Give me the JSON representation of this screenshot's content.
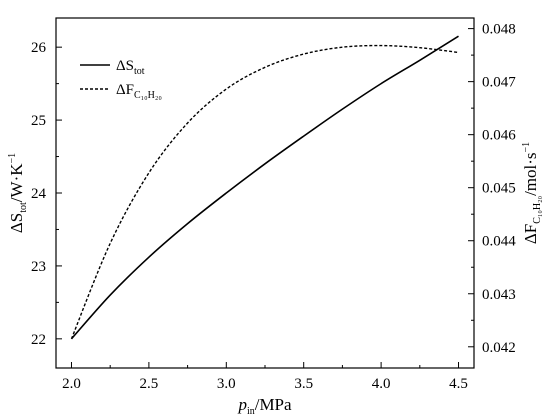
{
  "chart_data": {
    "type": "line",
    "x_axis": {
      "label_main": "p",
      "label_sub": "in",
      "label_unit": "/MPa",
      "range": [
        1.9,
        4.6
      ],
      "ticks": [
        2.0,
        2.5,
        3.0,
        3.5,
        4.0,
        4.5
      ],
      "tick_labels": [
        "2.0",
        "2.5",
        "3.0",
        "3.5",
        "4.0",
        "4.5"
      ]
    },
    "y_left": {
      "label_prefix": "ΔS",
      "label_sub": "tot",
      "label_unit": "/W·K",
      "label_sup": "−1",
      "range": [
        21.6,
        26.4
      ],
      "ticks": [
        22,
        23,
        24,
        25,
        26
      ],
      "tick_labels": [
        "22",
        "23",
        "24",
        "25",
        "26"
      ]
    },
    "y_right": {
      "label_prefix": "ΔF",
      "label_sub": "C₁₀H₂₀",
      "label_unit": "/mol·s",
      "label_sup": "−1",
      "range": [
        0.0416,
        0.0482
      ],
      "ticks": [
        0.042,
        0.043,
        0.044,
        0.045,
        0.046,
        0.047,
        0.048
      ],
      "tick_labels": [
        "0.042",
        "0.043",
        "0.044",
        "0.045",
        "0.046",
        "0.047",
        "0.048"
      ]
    },
    "series": [
      {
        "name_prefix": "ΔS",
        "name_sub": "tot",
        "axis": "left",
        "style": "solid",
        "x": [
          2.0,
          2.25,
          2.5,
          2.75,
          3.0,
          3.25,
          3.5,
          3.75,
          4.0,
          4.25,
          4.5
        ],
        "y": [
          22.0,
          22.6,
          23.12,
          23.58,
          24.0,
          24.4,
          24.78,
          25.15,
          25.5,
          25.82,
          26.15
        ]
      },
      {
        "name_prefix": "ΔF",
        "name_sub": "C₁₀H₂₀",
        "axis": "right",
        "style": "dashed",
        "x": [
          2.0,
          2.25,
          2.5,
          2.75,
          3.0,
          3.25,
          3.5,
          3.75,
          4.0,
          4.25,
          4.5
        ],
        "y": [
          0.04215,
          0.04395,
          0.04528,
          0.04622,
          0.04686,
          0.04727,
          0.04752,
          0.04765,
          0.04768,
          0.04764,
          0.04755
        ]
      }
    ],
    "legend_position": "top-left",
    "grid": false
  }
}
